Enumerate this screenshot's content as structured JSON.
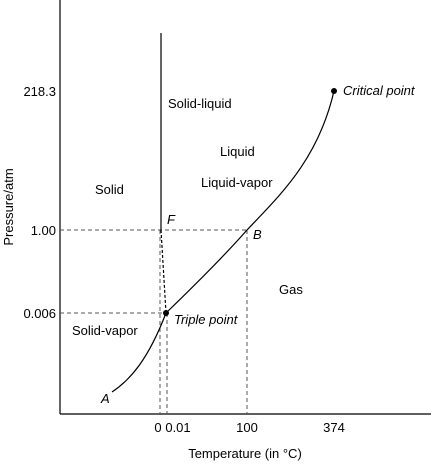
{
  "chart_data": {
    "type": "line",
    "title": "",
    "xlabel": "Temperature (in °C)",
    "ylabel": "Pressure/atm",
    "x_ticks": [
      "0",
      "0.01",
      "100",
      "374"
    ],
    "y_ticks": [
      "218.3",
      "1.00",
      "0.006"
    ],
    "grid": false,
    "scale": "schematic (not to scale)",
    "series": [
      {
        "name": "",
        "role": "sublimation curve",
        "points": [
          [
            "",
            ""
          ],
          [
            "0.01",
            "0.006"
          ]
        ]
      },
      {
        "name": "",
        "role": "melting curve",
        "points": [
          [
            "0.01",
            "0.006"
          ],
          [
            "0",
            "1.00"
          ],
          [
            "",
            ""
          ]
        ]
      },
      {
        "name": "",
        "role": "vaporization curve",
        "points": [
          [
            "0.01",
            "0.006"
          ],
          [
            "100",
            "1.00"
          ],
          [
            "374",
            "218.3"
          ]
        ]
      }
    ],
    "region_labels": [
      "Solid-liquid",
      "Liquid",
      "Liquid-vapor",
      "Solid",
      "Gas",
      "Solid-vapor"
    ],
    "point_labels": {
      "A": "A",
      "F": "F",
      "B": "B",
      "triple": "Triple point",
      "critical": "Critical point"
    }
  },
  "colors": {
    "axis": "#000000",
    "curve": "#000000",
    "guide": "#555555"
  }
}
